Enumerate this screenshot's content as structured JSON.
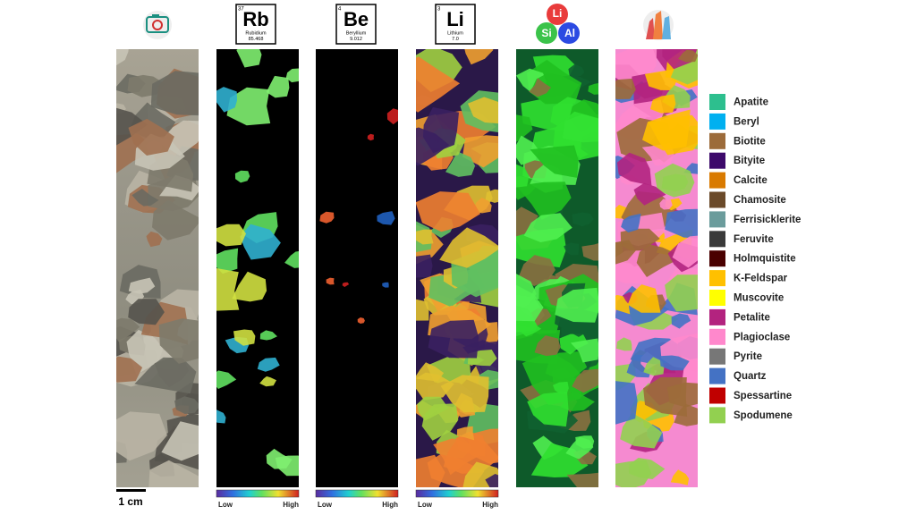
{
  "elements": [
    {
      "number": "37",
      "symbol": "Rb",
      "name": "Rubidium",
      "mass": "85.468"
    },
    {
      "number": "4",
      "symbol": "Be",
      "name": "Beryllium",
      "mass": "9.012"
    },
    {
      "number": "3",
      "symbol": "Li",
      "name": "Lithium",
      "mass": "7.0"
    }
  ],
  "ternary": {
    "labels": [
      "Li",
      "Si",
      "Al"
    ]
  },
  "colorbars": [
    {
      "low": "Low",
      "high": "High"
    },
    {
      "low": "Low",
      "high": "High"
    },
    {
      "low": "Low",
      "high": "High"
    }
  ],
  "scale_bar": "1 cm",
  "legend": {
    "items": [
      {
        "name": "Apatite",
        "color": "#2dbf8e"
      },
      {
        "name": "Beryl",
        "color": "#00b0f0"
      },
      {
        "name": "Biotite",
        "color": "#9c6b3a"
      },
      {
        "name": "Bityite",
        "color": "#3d0a6b"
      },
      {
        "name": "Calcite",
        "color": "#d97a00"
      },
      {
        "name": "Chamosite",
        "color": "#6b4a2a"
      },
      {
        "name": "Ferrisicklerite",
        "color": "#6b9c9c"
      },
      {
        "name": "Feruvite",
        "color": "#3a3a3a"
      },
      {
        "name": "Holmquistite",
        "color": "#4a0000"
      },
      {
        "name": "K-Feldspar",
        "color": "#ffc000"
      },
      {
        "name": "Muscovite",
        "color": "#ffff00"
      },
      {
        "name": "Petalite",
        "color": "#b3237f"
      },
      {
        "name": "Plagioclase",
        "color": "#ff88cc"
      },
      {
        "name": "Pyrite",
        "color": "#777777"
      },
      {
        "name": "Quartz",
        "color": "#4472c4"
      },
      {
        "name": "Spessartine",
        "color": "#c00000"
      },
      {
        "name": "Spodumene",
        "color": "#92d050"
      }
    ]
  }
}
